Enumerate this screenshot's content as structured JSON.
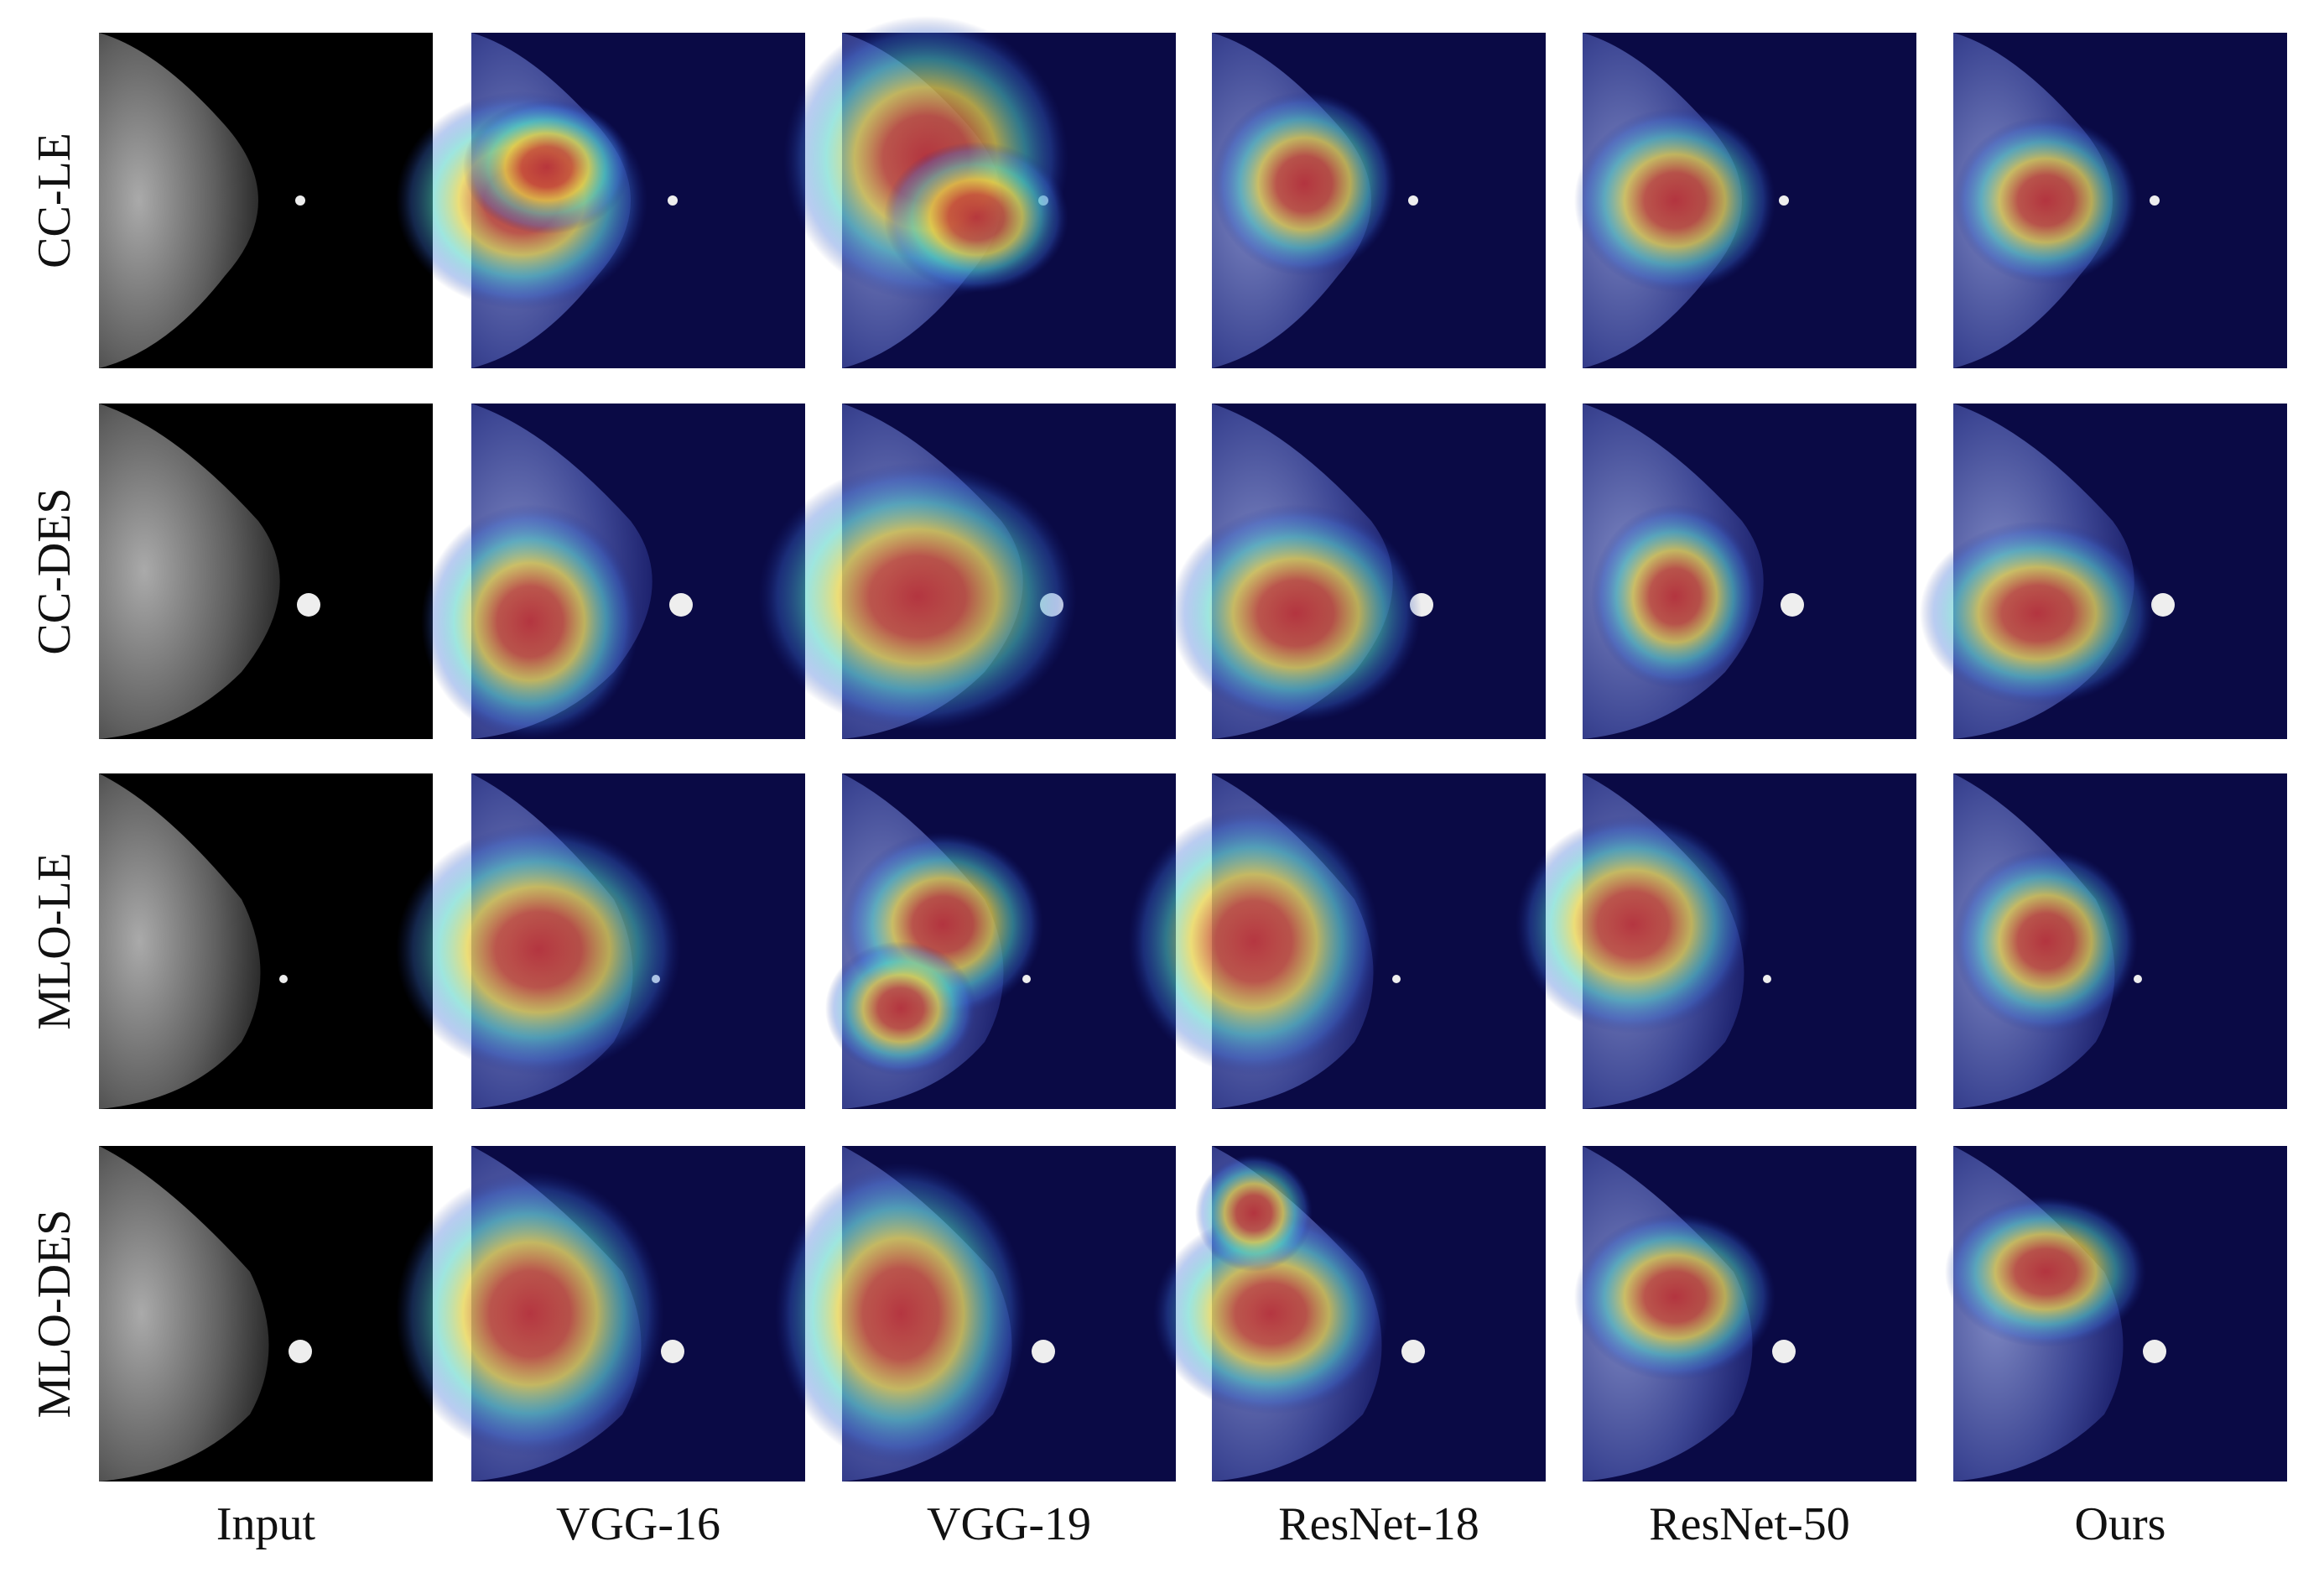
{
  "figure": {
    "row_labels": [
      "CC-LE",
      "CC-DES",
      "MLO-LE",
      "MLO-DES"
    ],
    "column_labels": [
      "Input",
      "VGG-16",
      "VGG-19",
      "ResNet-18",
      "ResNet-50",
      "Ours"
    ]
  }
}
